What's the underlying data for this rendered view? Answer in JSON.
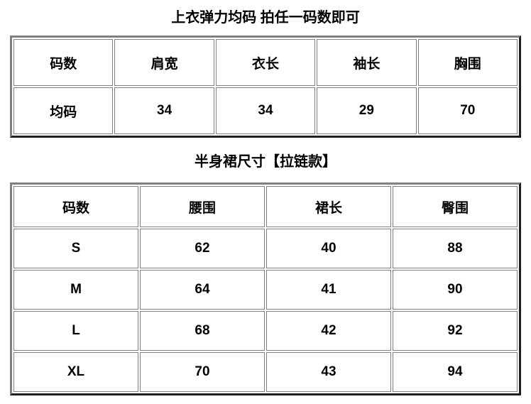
{
  "colors": {
    "background": "#ffffff",
    "text": "#000000",
    "outer_border_light": "#808080",
    "outer_border_dark": "#1f1f1f",
    "cell_border": "#808080"
  },
  "top_section": {
    "title": "上衣弹力均码 拍任一码数即可",
    "table": {
      "headers": [
        "码数",
        "肩宽",
        "衣长",
        "袖长",
        "胸围"
      ],
      "rows": [
        [
          "均码",
          "34",
          "34",
          "29",
          "70"
        ]
      ]
    }
  },
  "skirt_section": {
    "title": "半身裙尺寸【拉链款】",
    "table": {
      "headers": [
        "码数",
        "腰围",
        "裙长",
        "臀围"
      ],
      "rows": [
        [
          "S",
          "62",
          "40",
          "88"
        ],
        [
          "M",
          "64",
          "41",
          "90"
        ],
        [
          "L",
          "68",
          "42",
          "92"
        ],
        [
          "XL",
          "70",
          "43",
          "94"
        ]
      ]
    }
  }
}
